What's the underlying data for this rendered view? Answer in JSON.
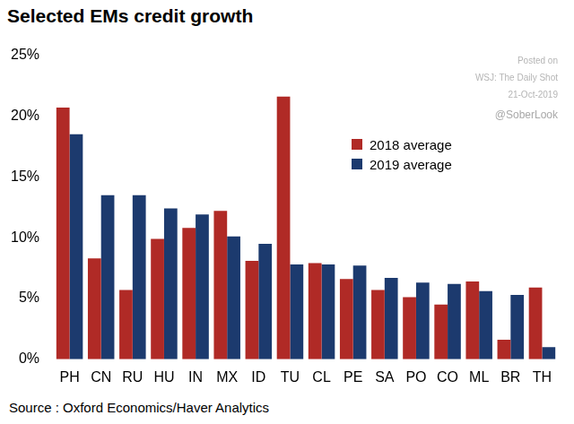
{
  "chart_data": {
    "type": "bar",
    "title": "Selected EMs credit growth",
    "categories": [
      "PH",
      "CN",
      "RU",
      "HU",
      "IN",
      "MX",
      "ID",
      "TU",
      "CL",
      "PE",
      "SA",
      "PO",
      "CO",
      "ML",
      "BR",
      "TH"
    ],
    "series": [
      {
        "name": "2018 average",
        "color": "#b02a26",
        "values": [
          20.7,
          8.3,
          5.7,
          9.9,
          10.8,
          12.2,
          8.1,
          21.6,
          7.9,
          6.6,
          5.7,
          5.1,
          4.5,
          6.4,
          1.6,
          5.9
        ]
      },
      {
        "name": "2019 average",
        "color": "#1c3a6e",
        "values": [
          18.5,
          13.5,
          13.5,
          12.4,
          11.9,
          10.1,
          9.5,
          7.8,
          7.8,
          7.7,
          6.7,
          6.3,
          6.2,
          5.6,
          5.3,
          1.0
        ]
      }
    ],
    "ylim": [
      0,
      25
    ],
    "yticks": [
      {
        "value": 0,
        "label": "0%"
      },
      {
        "value": 5,
        "label": "5%"
      },
      {
        "value": 10,
        "label": "10%"
      },
      {
        "value": 15,
        "label": "15%"
      },
      {
        "value": 20,
        "label": "20%"
      },
      {
        "value": 25,
        "label": "25%"
      }
    ],
    "grid": false,
    "legend": "right",
    "annotations": [
      "Posted on",
      "WSJ: The Daily Shot",
      "21-Oct-2019",
      "@SoberLook"
    ],
    "source": "Source : Oxford Economics/Haver Analytics"
  }
}
